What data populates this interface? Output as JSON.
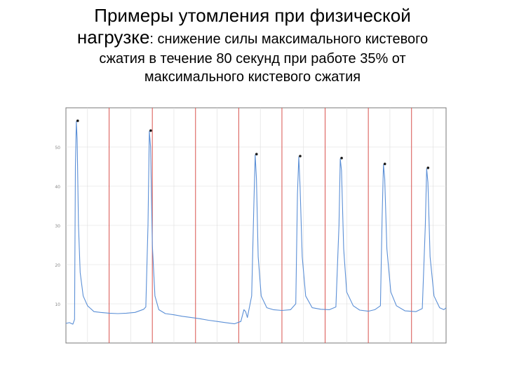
{
  "title": {
    "line1": "Примеры утомления при физической",
    "line2_lead": "нагрузке",
    "line2_rest": ": снижение силы максимального кистевого",
    "line3": "сжатия в течение 80 секунд при работе 35% от",
    "line4": "максимального кистевого сжатия"
  },
  "colors": {
    "signal": "#5b8fd6",
    "marker_line": "#d9534f",
    "grid": "#dcdcdc",
    "axis": "#7a7a7a",
    "peak_dot": "#1a1a1a"
  },
  "chart_data": {
    "type": "line",
    "title": "",
    "xlabel": "",
    "ylabel": "",
    "xlim": [
      0,
      88
    ],
    "ylim": [
      0,
      60
    ],
    "grid": true,
    "y_ticks": [
      10,
      20,
      30,
      40,
      50
    ],
    "event_markers_x": [
      10,
      20,
      30,
      40,
      50,
      60,
      70,
      80
    ],
    "series": [
      {
        "points": [
          [
            0,
            5.0
          ],
          [
            0.8,
            5.2
          ],
          [
            1.6,
            4.8
          ],
          [
            2.0,
            6.0
          ],
          [
            2.2,
            45.0
          ],
          [
            2.4,
            56.5
          ],
          [
            2.6,
            52.0
          ],
          [
            2.9,
            30.0
          ],
          [
            3.3,
            18.0
          ],
          [
            4.0,
            12.0
          ],
          [
            5.0,
            9.5
          ],
          [
            6.5,
            8.0
          ],
          [
            8.0,
            7.8
          ],
          [
            10.0,
            7.6
          ],
          [
            12.0,
            7.5
          ],
          [
            14.0,
            7.6
          ],
          [
            16.0,
            7.8
          ],
          [
            18.0,
            8.6
          ],
          [
            18.5,
            9.2
          ],
          [
            19.0,
            30.0
          ],
          [
            19.3,
            54.0
          ],
          [
            19.6,
            50.0
          ],
          [
            20.0,
            25.0
          ],
          [
            20.6,
            12.0
          ],
          [
            21.5,
            8.5
          ],
          [
            23.0,
            7.5
          ],
          [
            25.0,
            7.2
          ],
          [
            27.0,
            6.8
          ],
          [
            29.0,
            6.5
          ],
          [
            31.0,
            6.2
          ],
          [
            33.0,
            5.8
          ],
          [
            35.0,
            5.5
          ],
          [
            37.0,
            5.2
          ],
          [
            39.0,
            4.9
          ],
          [
            40.5,
            5.5
          ],
          [
            41.2,
            8.5
          ],
          [
            41.6,
            8.0
          ],
          [
            42.0,
            6.5
          ],
          [
            43.0,
            12.0
          ],
          [
            43.5,
            35.0
          ],
          [
            43.8,
            48.0
          ],
          [
            44.1,
            42.0
          ],
          [
            44.5,
            22.0
          ],
          [
            45.2,
            12.0
          ],
          [
            46.5,
            9.0
          ],
          [
            48.0,
            8.5
          ],
          [
            50.0,
            8.3
          ],
          [
            52.0,
            8.5
          ],
          [
            53.2,
            10.0
          ],
          [
            53.6,
            38.0
          ],
          [
            53.9,
            47.5
          ],
          [
            54.2,
            40.0
          ],
          [
            54.7,
            22.0
          ],
          [
            55.5,
            12.0
          ],
          [
            57.0,
            9.0
          ],
          [
            59.0,
            8.6
          ],
          [
            61.0,
            8.5
          ],
          [
            62.5,
            9.2
          ],
          [
            63.2,
            30.0
          ],
          [
            63.5,
            47.0
          ],
          [
            63.8,
            44.0
          ],
          [
            64.3,
            24.0
          ],
          [
            65.0,
            13.0
          ],
          [
            66.5,
            9.5
          ],
          [
            68.0,
            8.4
          ],
          [
            70.0,
            8.1
          ],
          [
            71.5,
            8.5
          ],
          [
            72.8,
            9.5
          ],
          [
            73.2,
            32.0
          ],
          [
            73.5,
            45.5
          ],
          [
            73.8,
            42.0
          ],
          [
            74.3,
            24.0
          ],
          [
            75.2,
            13.0
          ],
          [
            76.5,
            9.5
          ],
          [
            78.5,
            8.2
          ],
          [
            81.0,
            8.0
          ],
          [
            82.5,
            8.8
          ],
          [
            83.2,
            30.0
          ],
          [
            83.5,
            44.5
          ],
          [
            83.8,
            41.0
          ],
          [
            84.3,
            22.0
          ],
          [
            85.2,
            12.0
          ],
          [
            86.5,
            9.0
          ],
          [
            87.5,
            8.5
          ],
          [
            88.0,
            9.0
          ]
        ]
      }
    ],
    "peaks": [
      {
        "x": 2.4,
        "y": 56.5
      },
      {
        "x": 19.3,
        "y": 54.0
      },
      {
        "x": 43.8,
        "y": 48.0
      },
      {
        "x": 53.9,
        "y": 47.5
      },
      {
        "x": 63.5,
        "y": 47.0
      },
      {
        "x": 73.5,
        "y": 45.5
      },
      {
        "x": 83.5,
        "y": 44.5
      }
    ]
  }
}
